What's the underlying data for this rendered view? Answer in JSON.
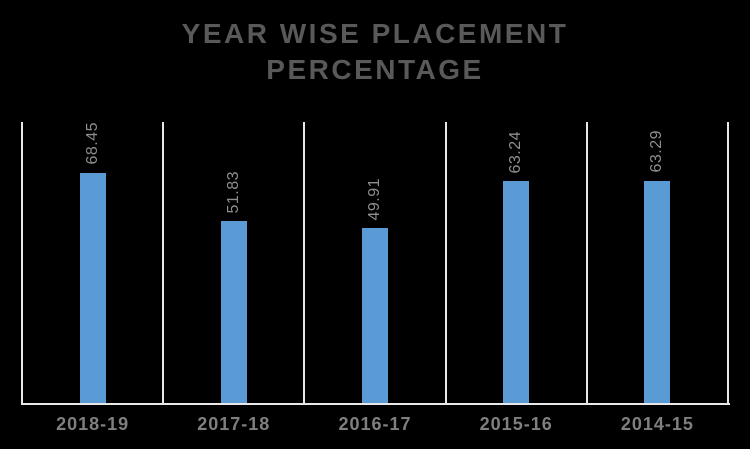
{
  "header": {
    "title_line1": "YEAR WISE PLACEMENT",
    "title_line2": "PERCENTAGE"
  },
  "chart_data": {
    "type": "bar",
    "title": "YEAR WISE PLACEMENT PERCENTAGE",
    "categories": [
      "2018-19",
      "2017-18",
      "2016-17",
      "2015-16",
      "2014-15"
    ],
    "values": [
      68.45,
      51.83,
      49.91,
      63.24,
      63.29
    ],
    "data_labels": [
      "68.45",
      "51.83",
      "49.91",
      "63.24",
      "63.29"
    ],
    "series": [
      {
        "name": "Placement Percentage",
        "values": [
          68.45,
          51.83,
          49.91,
          63.24,
          63.29
        ]
      }
    ],
    "xlabel": "",
    "ylabel": "",
    "ylim": [
      0,
      80
    ],
    "grid": "vertical category separator lines only",
    "legend_position": "none",
    "data_label_rotation_deg": -90,
    "colors": {
      "bar": "#5b9bd5",
      "background": "#000000",
      "title": "#595959",
      "value_label": "#8e8e8e",
      "category_label": "#7f7f7f",
      "axis": "#e8e8e8"
    }
  }
}
